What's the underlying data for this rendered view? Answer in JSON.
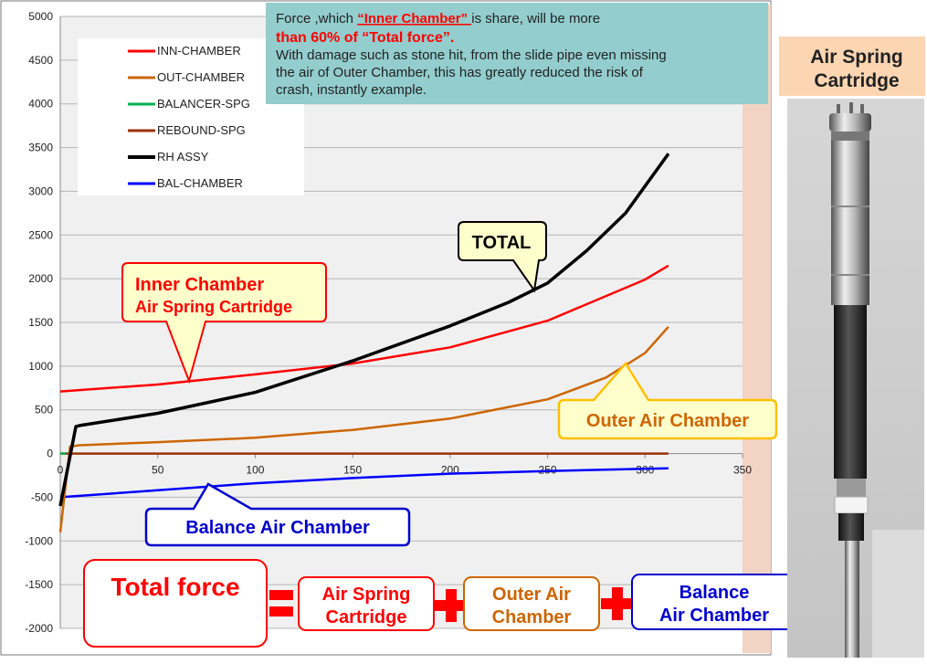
{
  "chart_data": {
    "type": "line",
    "title": "",
    "xlabel": "",
    "ylabel": "",
    "xlim": [
      0,
      350
    ],
    "ylim": [
      -2000,
      5000
    ],
    "x_ticks": [
      0,
      50,
      100,
      150,
      200,
      250,
      300,
      350
    ],
    "y_ticks": [
      -2000,
      -1500,
      -1000,
      -500,
      0,
      500,
      1000,
      1500,
      2000,
      2500,
      3000,
      3500,
      4000,
      4500,
      5000
    ],
    "grid": true,
    "legend_position": "top-left",
    "series": [
      {
        "name": "INN-CHAMBER",
        "color": "#ff0000",
        "x": [
          0,
          50,
          100,
          150,
          200,
          250,
          300,
          312
        ],
        "y": [
          710,
          790,
          905,
          1030,
          1215,
          1520,
          1990,
          2150
        ]
      },
      {
        "name": "OUT-CHAMBER",
        "color": "#cc6600",
        "x": [
          0,
          5,
          10,
          50,
          100,
          150,
          200,
          250,
          280,
          300,
          312
        ],
        "y": [
          -900,
          80,
          95,
          130,
          180,
          270,
          400,
          620,
          870,
          1150,
          1450
        ]
      },
      {
        "name": "BALANCER-SPG",
        "color": "#00b050",
        "x": [
          0,
          3
        ],
        "y": [
          0,
          0
        ]
      },
      {
        "name": "REBOUND-SPG",
        "color": "#993300",
        "x": [
          0,
          312
        ],
        "y": [
          0,
          0
        ]
      },
      {
        "name": "RH ASSY",
        "color": "#000000",
        "x": [
          0,
          8,
          10,
          50,
          100,
          150,
          200,
          230,
          250,
          270,
          290,
          312
        ],
        "y": [
          -600,
          310,
          320,
          460,
          700,
          1060,
          1460,
          1730,
          1950,
          2320,
          2750,
          3430
        ]
      },
      {
        "name": "BAL-CHAMBER",
        "color": "#0000ff",
        "x": [
          0,
          50,
          100,
          150,
          200,
          250,
          300,
          312
        ],
        "y": [
          -500,
          -420,
          -340,
          -280,
          -230,
          -200,
          -175,
          -170
        ]
      }
    ]
  },
  "info_box": {
    "line1_a": "Force ,which ",
    "line1_b": "“Inner Chamber” ",
    "line1_c": "is share, will be  more",
    "line2": "than 60% of “Total force”.",
    "line3": "With damage such as stone hit, from the slide pipe  even missing",
    "line4": "the air of Outer Chamber, this has greatly reduced the risk of",
    "line5": "crash, instantly example."
  },
  "callouts": {
    "total": "TOTAL",
    "inner_line1": "Inner Chamber",
    "inner_line2": "Air Spring Cartridge",
    "outer": "Outer Air Chamber",
    "balance": "Balance Air Chamber"
  },
  "formula": {
    "total_force": "Total force",
    "term1_line1": "Air Spring",
    "term1_line2": "Cartridge",
    "term2_line1": "Outer Air",
    "term2_line2": "Chamber",
    "term3_line1": "Balance",
    "term3_line2": "Air Chamber"
  },
  "side_panel": {
    "title_line1": "Air Spring",
    "title_line2": "Cartridge"
  },
  "colors": {
    "plot_bg": "#f0f0f0",
    "right_margin": "#f2d3c4",
    "info_box_bg": "#93cdcd",
    "callout_bg": "#ffffcc",
    "side_title_bg": "#fcd6b2",
    "formula_red": "#ff0000",
    "inner_red": "#ff0000",
    "outer_gold": "#ffc000",
    "balance_blue": "#0000cc",
    "outer_brown": "#cc6600"
  }
}
